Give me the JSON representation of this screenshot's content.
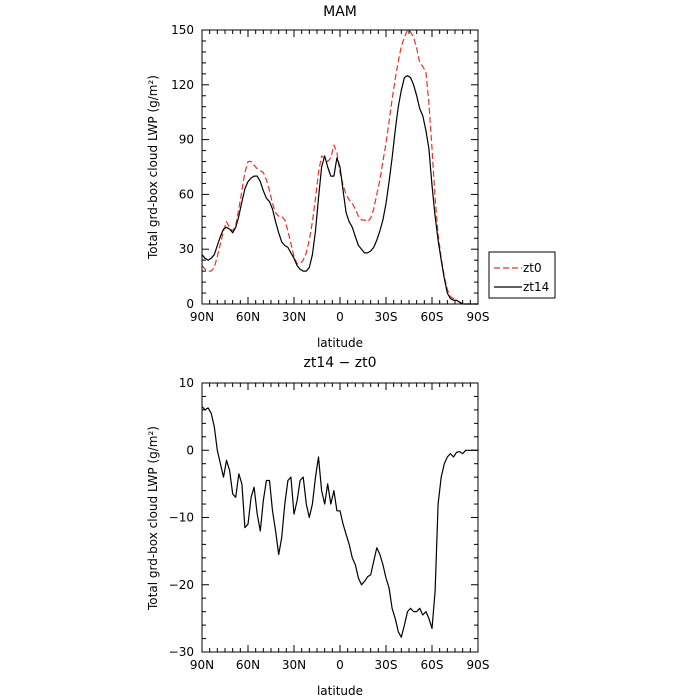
{
  "chart_data": [
    {
      "type": "line",
      "title": "MAM",
      "xlabel": "latitude",
      "ylabel": "Total grd-box cloud LWP (g/m²)",
      "ylim": [
        0,
        150
      ],
      "xlim": [
        90,
        -90
      ],
      "x_ticks": [
        90,
        60,
        30,
        0,
        -30,
        -60,
        -90
      ],
      "x_tick_labels": [
        "90N",
        "60N",
        "30N",
        "0",
        "30S",
        "60S",
        "90S"
      ],
      "y_ticks": [
        0,
        30,
        60,
        90,
        120,
        150
      ],
      "y_tick_labels": [
        "0",
        "30",
        "60",
        "90",
        "120",
        "150"
      ],
      "legend": {
        "placement": "right-outside"
      },
      "grid": false,
      "series": [
        {
          "name": "zt0",
          "color": "#e8322b",
          "dash": "dashed",
          "x": [
            90,
            88,
            86,
            84,
            82,
            80,
            78,
            76,
            74,
            72,
            70,
            68,
            66,
            64,
            62,
            60,
            58,
            56,
            54,
            52,
            50,
            48,
            46,
            44,
            42,
            40,
            38,
            36,
            34,
            32,
            30,
            28,
            26,
            24,
            22,
            20,
            18,
            16,
            14,
            12,
            10,
            8,
            6,
            4,
            2,
            0,
            -2,
            -4,
            -6,
            -8,
            -10,
            -12,
            -14,
            -16,
            -18,
            -20,
            -22,
            -24,
            -26,
            -28,
            -30,
            -32,
            -34,
            -36,
            -38,
            -40,
            -42,
            -44,
            -46,
            -48,
            -50,
            -52,
            -54,
            -56,
            -58,
            -60,
            -62,
            -64,
            -66,
            -68,
            -70,
            -72,
            -74,
            -76,
            -78,
            -80,
            -82,
            -84,
            -86,
            -88,
            -90
          ],
          "y": [
            21,
            19,
            18,
            18,
            20,
            26,
            33,
            40,
            45,
            42,
            40,
            43,
            52,
            62,
            72,
            78,
            78,
            76,
            74,
            73,
            72,
            68,
            62,
            55,
            50,
            48,
            48,
            46,
            40,
            33,
            26,
            22,
            22,
            24,
            28,
            35,
            45,
            58,
            72,
            81,
            80,
            78,
            80,
            87,
            83,
            72,
            65,
            60,
            57,
            55,
            52,
            48,
            46,
            46,
            45,
            47,
            52,
            60,
            68,
            78,
            88,
            100,
            112,
            123,
            133,
            141,
            146,
            150,
            149,
            146,
            140,
            132,
            130,
            127,
            110,
            85,
            58,
            38,
            25,
            15,
            8,
            4,
            3,
            2,
            1,
            0,
            0,
            0,
            0,
            0,
            0
          ]
        },
        {
          "name": "zt14",
          "color": "#000000",
          "dash": "solid",
          "x": [
            90,
            88,
            86,
            84,
            82,
            80,
            78,
            76,
            74,
            72,
            70,
            68,
            66,
            64,
            62,
            60,
            58,
            56,
            54,
            52,
            50,
            48,
            46,
            44,
            42,
            40,
            38,
            36,
            34,
            32,
            30,
            28,
            26,
            24,
            22,
            20,
            18,
            16,
            14,
            12,
            10,
            8,
            6,
            4,
            2,
            0,
            -2,
            -4,
            -6,
            -8,
            -10,
            -12,
            -14,
            -16,
            -18,
            -20,
            -22,
            -24,
            -26,
            -28,
            -30,
            -32,
            -34,
            -36,
            -38,
            -40,
            -42,
            -44,
            -46,
            -48,
            -50,
            -52,
            -54,
            -56,
            -58,
            -60,
            -62,
            -64,
            -66,
            -68,
            -70,
            -72,
            -74,
            -76,
            -78,
            -80,
            -82,
            -84,
            -86,
            -88,
            -90
          ],
          "y": [
            27,
            25,
            24,
            25,
            27,
            32,
            37,
            41,
            42,
            41,
            39,
            42,
            48,
            56,
            63,
            67,
            69,
            70,
            70,
            67,
            62,
            58,
            56,
            52,
            45,
            39,
            34,
            32,
            31,
            28,
            25,
            21,
            19,
            18,
            18,
            20,
            27,
            40,
            58,
            75,
            81,
            75,
            70,
            70,
            80,
            75,
            62,
            50,
            45,
            42,
            37,
            32,
            30,
            28,
            28,
            29,
            31,
            35,
            40,
            46,
            55,
            67,
            80,
            95,
            108,
            117,
            124,
            125,
            124,
            120,
            114,
            107,
            103,
            95,
            85,
            65,
            48,
            35,
            24,
            14,
            6,
            3,
            2,
            2,
            1,
            0,
            0,
            0,
            0,
            0,
            0
          ]
        }
      ]
    },
    {
      "type": "line",
      "title": "zt14 − zt0",
      "xlabel": "latitude",
      "ylabel": "Total grd-box cloud LWP (g/m²)",
      "ylim": [
        -30,
        10
      ],
      "xlim": [
        90,
        -90
      ],
      "x_ticks": [
        90,
        60,
        30,
        0,
        -30,
        -60,
        -90
      ],
      "x_tick_labels": [
        "90N",
        "60N",
        "30N",
        "0",
        "30S",
        "60S",
        "90S"
      ],
      "y_ticks": [
        -30,
        -20,
        -10,
        0,
        10
      ],
      "y_tick_labels": [
        "−30",
        "−20",
        "−10",
        "0",
        "10"
      ],
      "grid": false,
      "series": [
        {
          "color": "#000000",
          "dash": "solid",
          "x": [
            90,
            88,
            86,
            84,
            82,
            80,
            78,
            76,
            74,
            72,
            70,
            68,
            66,
            64,
            62,
            60,
            58,
            56,
            54,
            52,
            50,
            48,
            46,
            44,
            42,
            40,
            38,
            36,
            34,
            32,
            30,
            28,
            26,
            24,
            22,
            20,
            18,
            16,
            14,
            12,
            10,
            8,
            6,
            4,
            2,
            0,
            -2,
            -4,
            -6,
            -8,
            -10,
            -12,
            -14,
            -16,
            -18,
            -20,
            -22,
            -24,
            -26,
            -28,
            -30,
            -32,
            -34,
            -36,
            -38,
            -40,
            -42,
            -44,
            -46,
            -48,
            -50,
            -52,
            -54,
            -56,
            -58,
            -60,
            -62,
            -64,
            -66,
            -68,
            -70,
            -72,
            -74,
            -76,
            -78,
            -80,
            -82,
            -84,
            -86,
            -88,
            -90
          ],
          "y": [
            6.5,
            6,
            6.3,
            5.5,
            3.5,
            0,
            -2,
            -4,
            -1.5,
            -3,
            -6.5,
            -7,
            -3.5,
            -5,
            -11.5,
            -11,
            -7,
            -5.5,
            -9.5,
            -12,
            -7.5,
            -4.5,
            -4.5,
            -9,
            -12,
            -15.5,
            -13,
            -8,
            -4.5,
            -4,
            -9.5,
            -7.5,
            -4.5,
            -4,
            -8,
            -10,
            -8,
            -4,
            -1,
            -6,
            -8,
            -5,
            -8,
            -6,
            -9,
            -9,
            -11,
            -12.5,
            -14,
            -16,
            -17,
            -19,
            -20,
            -19.5,
            -18.8,
            -18.5,
            -16.5,
            -14.5,
            -15.5,
            -17,
            -19,
            -20.5,
            -23.5,
            -25,
            -27,
            -27.8,
            -26,
            -24,
            -23.5,
            -24,
            -24,
            -23.5,
            -24.5,
            -24,
            -25,
            -26.5,
            -21,
            -8,
            -4,
            -2,
            -1,
            -0.5,
            -1,
            -0.3,
            -0.2,
            -0.5,
            0,
            0,
            0,
            0,
            0
          ]
        }
      ]
    }
  ]
}
